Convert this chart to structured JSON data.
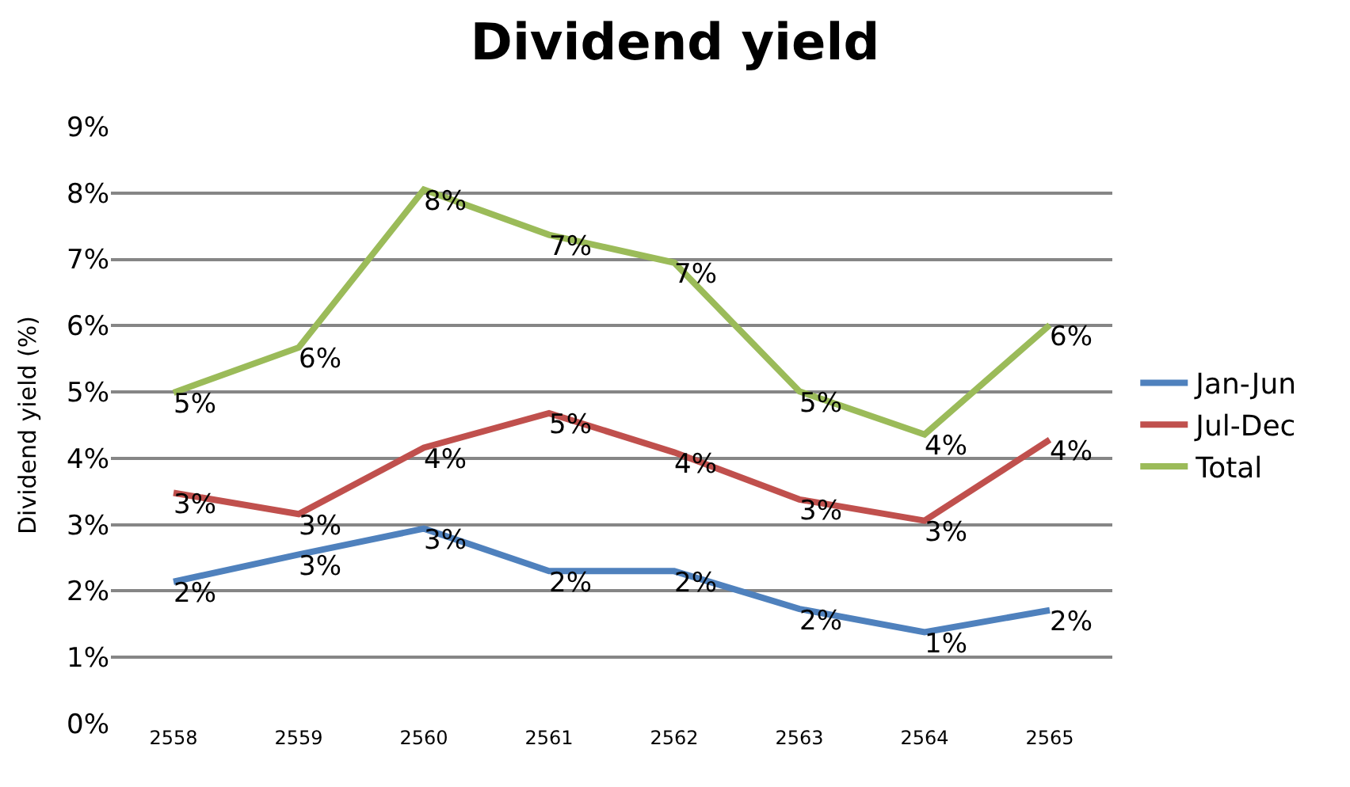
{
  "chart_data": {
    "type": "line",
    "title": "Dividend yield",
    "ylabel": "Dividend yield (%)",
    "categories": [
      "2558",
      "2559",
      "2560",
      "2561",
      "2562",
      "2563",
      "2564",
      "2565"
    ],
    "series": [
      {
        "name": "Jan-Jun",
        "color": "#4f81bd",
        "values": [
          2.14,
          2.55,
          2.94,
          2.3,
          2.3,
          1.73,
          1.38,
          1.71
        ],
        "value_labels": [
          "2%",
          "3%",
          "3%",
          "2%",
          "2%",
          "2%",
          "1%",
          "2%"
        ]
      },
      {
        "name": "Jul-Dec",
        "color": "#c0504d",
        "values": [
          3.48,
          3.16,
          4.16,
          4.68,
          4.09,
          3.38,
          3.06,
          4.28
        ],
        "value_labels": [
          "3%",
          "3%",
          "4%",
          "5%",
          "4%",
          "3%",
          "3%",
          "4%"
        ]
      },
      {
        "name": "Total",
        "color": "#9bbb59",
        "values": [
          4.99,
          5.67,
          8.05,
          7.37,
          6.95,
          5.01,
          4.36,
          6.01
        ],
        "value_labels": [
          "5%",
          "6%",
          "8%",
          "7%",
          "7%",
          "5%",
          "4%",
          "6%"
        ]
      }
    ],
    "ylim": [
      0,
      9
    ],
    "yticks": [
      {
        "value": 0,
        "label": "0%"
      },
      {
        "value": 1,
        "label": "1%"
      },
      {
        "value": 2,
        "label": "2%"
      },
      {
        "value": 3,
        "label": "3%"
      },
      {
        "value": 4,
        "label": "4%"
      },
      {
        "value": 5,
        "label": "5%"
      },
      {
        "value": 6,
        "label": "6%"
      },
      {
        "value": 7,
        "label": "7%"
      },
      {
        "value": 8,
        "label": "8%"
      },
      {
        "value": 9,
        "label": "9%"
      }
    ],
    "grid": "y",
    "legend": "right",
    "marker": "none",
    "line_style": "solid"
  }
}
